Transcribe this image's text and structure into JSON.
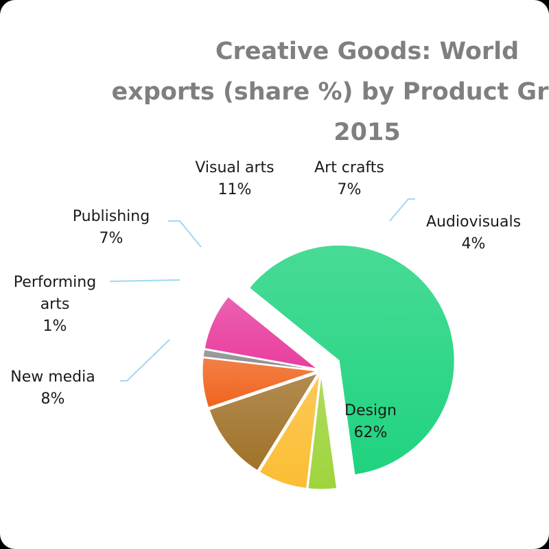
{
  "chart_data": {
    "type": "pie",
    "title_lines": [
      "Creative Goods: World",
      "exports (share %) by Product Groups,",
      "2015"
    ],
    "slices": [
      {
        "name": "Design",
        "value": 62,
        "label": "62%",
        "color": "#1fd37f",
        "exploded": true
      },
      {
        "name": "Audiovisuals",
        "value": 4,
        "label": "4%",
        "color": "#9ed43c"
      },
      {
        "name": "Art crafts",
        "value": 7,
        "label": "7%",
        "color": "#fbbd33"
      },
      {
        "name": "Visual arts",
        "value": 11,
        "label": "11%",
        "color": "#a07229"
      },
      {
        "name": "Publishing",
        "value": 7,
        "label": "7%",
        "color": "#f0641e"
      },
      {
        "name": "Performing arts",
        "value": 1,
        "label": "1%",
        "color": "#8a8a8a"
      },
      {
        "name": "New media",
        "value": 8,
        "label": "8%",
        "color": "#e83e9e"
      }
    ],
    "legend": "none",
    "data_labels": "outside with leader lines"
  }
}
